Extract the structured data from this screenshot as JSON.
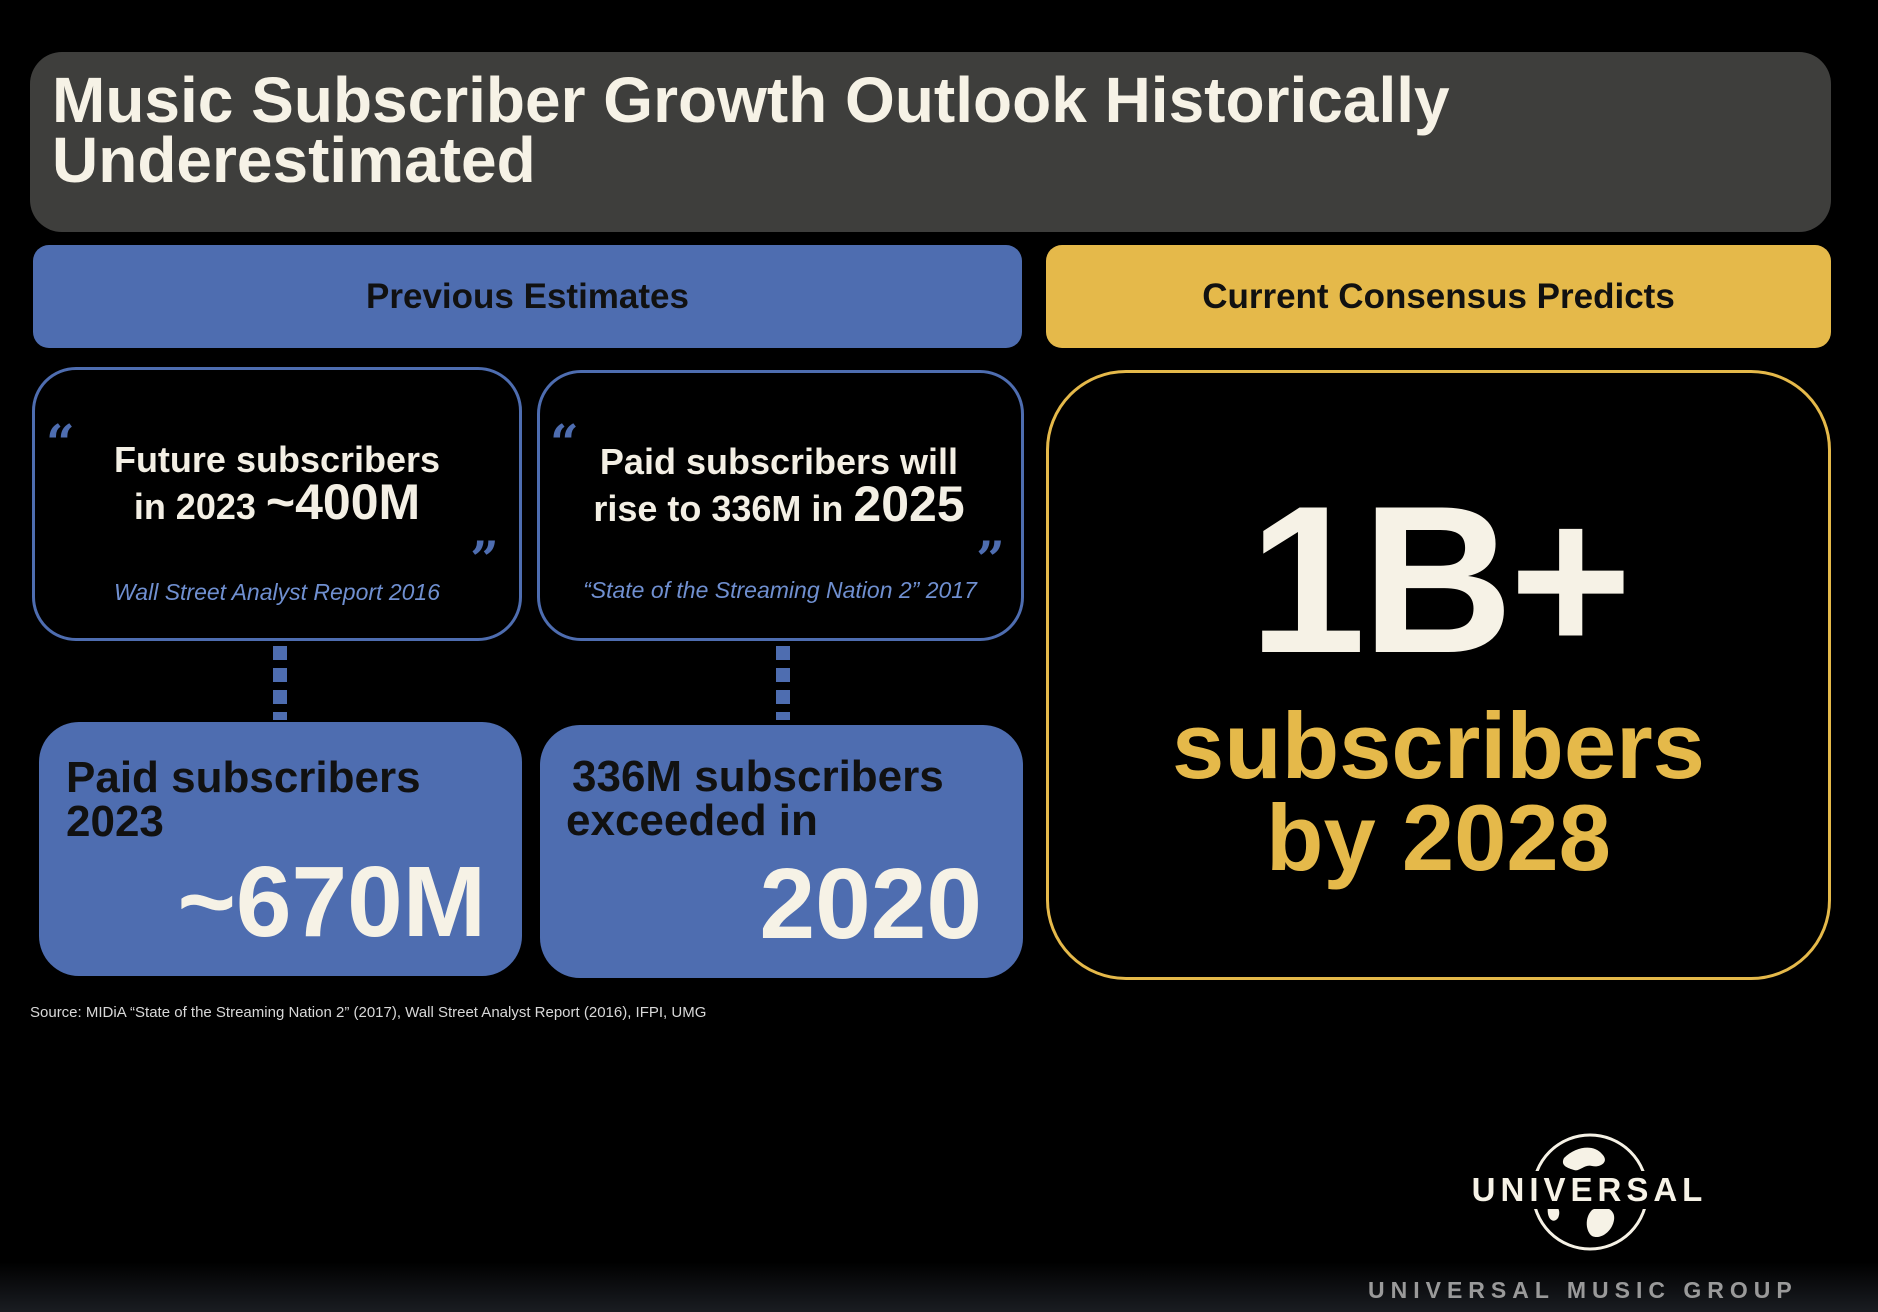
{
  "title": "Music Subscriber Growth Outlook Historically Underestimated",
  "headers": {
    "previous": "Previous Estimates",
    "current": "Current Consensus Predicts"
  },
  "quotes": [
    {
      "line1": "Future subscribers",
      "line2_prefix": "in 2023 ",
      "line2_big": "~400M",
      "source": "Wall Street Analyst Report 2016"
    },
    {
      "line1": "Paid subscribers will",
      "line2_prefix": "rise to 336M in ",
      "line2_big": "2025",
      "source": "“State of the Streaming Nation 2” 2017"
    }
  ],
  "quote_marks": {
    "open": "“",
    "close": "„"
  },
  "outcomes": [
    {
      "line1": "Paid subscribers",
      "line2": "2023",
      "value": "~670M"
    },
    {
      "line1": "336M subscribers",
      "line2": "exceeded in",
      "value": "2020"
    }
  ],
  "consensus": {
    "value": "1B+",
    "line1": "subscribers",
    "line2": "by 2028"
  },
  "footnote": "Source: MIDiA “State of the Streaming Nation 2” (2017), Wall Street Analyst Report (2016), IFPI, UMG",
  "logo": {
    "wordmark": "UNIVERSAL",
    "group_name": "UNIVERSAL MUSIC GROUP"
  }
}
